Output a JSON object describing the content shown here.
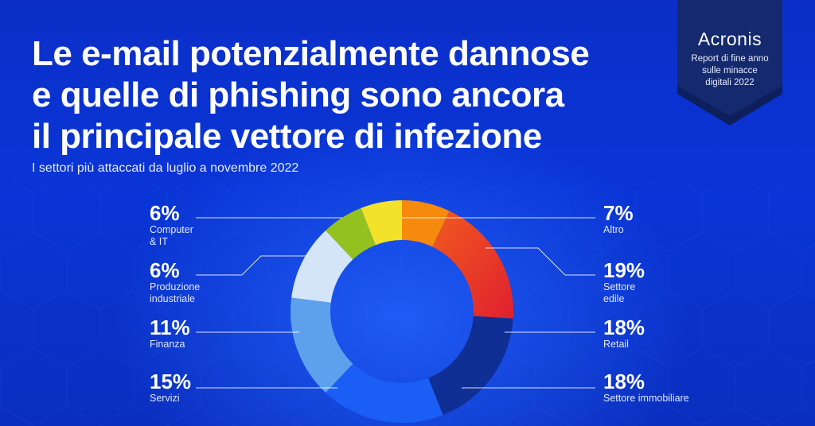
{
  "header": {
    "title_lines": [
      "Le e-mail potenzialmente dannose",
      "e quelle di phishing sono ancora",
      "il principale vettore di infezione"
    ],
    "subtitle": "I settori più attaccati da luglio a novembre 2022"
  },
  "badge": {
    "brand": "Acronis",
    "report_lines": [
      "Report di fine anno",
      "sulle minacce",
      "digitali 2022"
    ]
  },
  "colors": {
    "background": "#0a35d6",
    "leader_line": "#ffffff"
  },
  "chart_data": {
    "type": "pie",
    "variant": "donut",
    "title": "",
    "subtitle": "I settori più attaccati da luglio a novembre 2022",
    "unit": "%",
    "slices": [
      {
        "label": "Altro",
        "value": 7,
        "display": "7%",
        "color": "#f58a0d"
      },
      {
        "label": "Settore edile",
        "value": 19,
        "display": "19%",
        "color": "#ec3525"
      },
      {
        "label": "Retail",
        "value": 18,
        "display": "18%",
        "color": "#0f2f95"
      },
      {
        "label": "Settore immobiliare",
        "value": 18,
        "display": "18%",
        "color": "#1a5ef5"
      },
      {
        "label": "Servizi",
        "value": 15,
        "display": "15%",
        "color": "#5da1ec"
      },
      {
        "label": "Finanza",
        "value": 11,
        "display": "11%",
        "color": "#d3e5f7"
      },
      {
        "label": "Produzione industriale",
        "value": 6,
        "display": "6%",
        "color": "#93c11f"
      },
      {
        "label": "Computer & IT",
        "value": 6,
        "display": "6%",
        "color": "#f3e22a"
      }
    ],
    "legend": "leader-line labels"
  },
  "labels": [
    {
      "pct": "7%",
      "name": "Altro"
    },
    {
      "pct": "19%",
      "name": "Settore\nedile"
    },
    {
      "pct": "18%",
      "name": "Retail"
    },
    {
      "pct": "18%",
      "name": "Settore immobiliare"
    },
    {
      "pct": "15%",
      "name": "Servizi"
    },
    {
      "pct": "11%",
      "name": "Finanza"
    },
    {
      "pct": "6%",
      "name": "Produzione\nindustriale"
    },
    {
      "pct": "6%",
      "name": "Computer\n& IT"
    }
  ]
}
